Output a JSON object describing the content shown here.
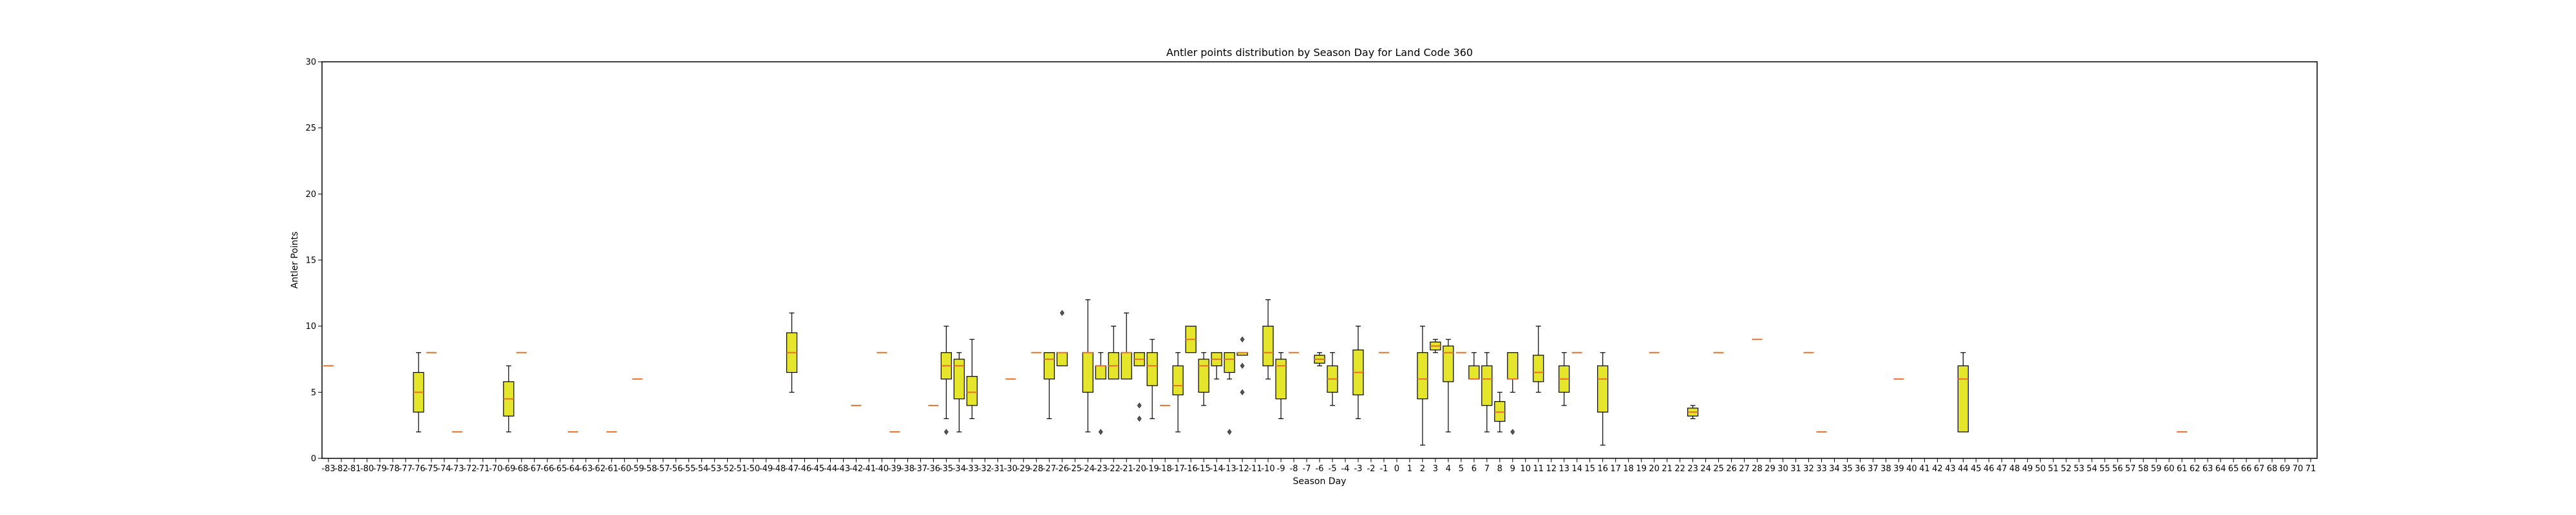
{
  "chart_data": {
    "type": "box",
    "title": "Antler points distribution by Season Day for Land Code 360",
    "xlabel": "Season Day",
    "ylabel": "Antler Points",
    "ylim": [
      0,
      30
    ],
    "yticks": [
      0,
      5,
      10,
      15,
      20,
      25,
      30
    ],
    "x_range": [
      -83,
      71
    ],
    "grid": false,
    "colors": {
      "box": "#e5e52b",
      "median": "#e8702a",
      "edge": "#000000"
    },
    "boxes": [
      {
        "day": -83,
        "q1": 7,
        "median": 7,
        "q3": 7,
        "low": 7,
        "high": 7
      },
      {
        "day": -76,
        "q1": 3.5,
        "median": 5,
        "q3": 6.5,
        "low": 2,
        "high": 8
      },
      {
        "day": -75,
        "q1": 8,
        "median": 8,
        "q3": 8,
        "low": 8,
        "high": 8
      },
      {
        "day": -73,
        "q1": 2,
        "median": 2,
        "q3": 2,
        "low": 2,
        "high": 2
      },
      {
        "day": -69,
        "q1": 3.2,
        "median": 4.5,
        "q3": 5.8,
        "low": 2,
        "high": 7
      },
      {
        "day": -68,
        "q1": 8,
        "median": 8,
        "q3": 8,
        "low": 8,
        "high": 8
      },
      {
        "day": -64,
        "q1": 2,
        "median": 2,
        "q3": 2,
        "low": 2,
        "high": 2
      },
      {
        "day": -61,
        "q1": 2,
        "median": 2,
        "q3": 2,
        "low": 2,
        "high": 2
      },
      {
        "day": -59,
        "q1": 6,
        "median": 6,
        "q3": 6,
        "low": 6,
        "high": 6
      },
      {
        "day": -47,
        "q1": 6.5,
        "median": 8,
        "q3": 9.5,
        "low": 5,
        "high": 11
      },
      {
        "day": -42,
        "q1": 4,
        "median": 4,
        "q3": 4,
        "low": 4,
        "high": 4
      },
      {
        "day": -40,
        "q1": 8,
        "median": 8,
        "q3": 8,
        "low": 8,
        "high": 8
      },
      {
        "day": -39,
        "q1": 2,
        "median": 2,
        "q3": 2,
        "low": 2,
        "high": 2
      },
      {
        "day": -36,
        "q1": 4,
        "median": 4,
        "q3": 4,
        "low": 4,
        "high": 4
      },
      {
        "day": -35,
        "q1": 6,
        "median": 7,
        "q3": 8,
        "low": 3,
        "high": 10,
        "outliers": [
          2
        ]
      },
      {
        "day": -34,
        "q1": 4.5,
        "median": 7,
        "q3": 7.5,
        "low": 2,
        "high": 8
      },
      {
        "day": -33,
        "q1": 4,
        "median": 5,
        "q3": 6.2,
        "low": 3,
        "high": 9
      },
      {
        "day": -30,
        "q1": 6,
        "median": 6,
        "q3": 6,
        "low": 6,
        "high": 6
      },
      {
        "day": -28,
        "q1": 8,
        "median": 8,
        "q3": 8,
        "low": 8,
        "high": 8
      },
      {
        "day": -27,
        "q1": 6,
        "median": 7.5,
        "q3": 8,
        "low": 3,
        "high": 8
      },
      {
        "day": -26,
        "q1": 7,
        "median": 8,
        "q3": 8,
        "low": 7,
        "high": 8,
        "outliers": [
          11
        ]
      },
      {
        "day": -24,
        "q1": 5,
        "median": 8,
        "q3": 8,
        "low": 2,
        "high": 12
      },
      {
        "day": -23,
        "q1": 6,
        "median": 7,
        "q3": 7,
        "low": 6,
        "high": 8,
        "outliers": [
          2
        ]
      },
      {
        "day": -22,
        "q1": 6,
        "median": 7,
        "q3": 8,
        "low": 6,
        "high": 10
      },
      {
        "day": -21,
        "q1": 6,
        "median": 8,
        "q3": 8,
        "low": 6,
        "high": 11
      },
      {
        "day": -20,
        "q1": 7,
        "median": 7.5,
        "q3": 8,
        "low": 7,
        "high": 8,
        "outliers": [
          4,
          3
        ]
      },
      {
        "day": -19,
        "q1": 5.5,
        "median": 7,
        "q3": 8,
        "low": 3,
        "high": 9
      },
      {
        "day": -18,
        "q1": 4,
        "median": 4,
        "q3": 4,
        "low": 4,
        "high": 4
      },
      {
        "day": -17,
        "q1": 4.8,
        "median": 5.5,
        "q3": 7,
        "low": 2,
        "high": 8
      },
      {
        "day": -16,
        "q1": 8,
        "median": 9,
        "q3": 10,
        "low": 8,
        "high": 10
      },
      {
        "day": -15,
        "q1": 5,
        "median": 7,
        "q3": 7.5,
        "low": 4,
        "high": 8
      },
      {
        "day": -14,
        "q1": 7,
        "median": 7.5,
        "q3": 8,
        "low": 6,
        "high": 8
      },
      {
        "day": -13,
        "q1": 6.5,
        "median": 7.5,
        "q3": 8,
        "low": 6,
        "high": 8,
        "outliers": [
          2
        ]
      },
      {
        "day": -12,
        "q1": 7.8,
        "median": 8,
        "q3": 8,
        "low": 7.8,
        "high": 8,
        "outliers": [
          9,
          7,
          5
        ]
      },
      {
        "day": -10,
        "q1": 7,
        "median": 8,
        "q3": 10,
        "low": 6,
        "high": 12
      },
      {
        "day": -9,
        "q1": 4.5,
        "median": 7,
        "q3": 7.5,
        "low": 3,
        "high": 8
      },
      {
        "day": -8,
        "q1": 8,
        "median": 8,
        "q3": 8,
        "low": 8,
        "high": 8
      },
      {
        "day": -6,
        "q1": 7.2,
        "median": 7.5,
        "q3": 7.8,
        "low": 7,
        "high": 8
      },
      {
        "day": -5,
        "q1": 5,
        "median": 6,
        "q3": 7,
        "low": 4,
        "high": 8
      },
      {
        "day": -3,
        "q1": 4.8,
        "median": 6.5,
        "q3": 8.2,
        "low": 3,
        "high": 10
      },
      {
        "day": -1,
        "q1": 8,
        "median": 8,
        "q3": 8,
        "low": 8,
        "high": 8
      },
      {
        "day": 2,
        "q1": 4.5,
        "median": 6,
        "q3": 8,
        "low": 1,
        "high": 10
      },
      {
        "day": 3,
        "q1": 8.2,
        "median": 8.5,
        "q3": 8.8,
        "low": 8,
        "high": 9
      },
      {
        "day": 4,
        "q1": 5.8,
        "median": 8,
        "q3": 8.5,
        "low": 2,
        "high": 9
      },
      {
        "day": 5,
        "q1": 8,
        "median": 8,
        "q3": 8,
        "low": 8,
        "high": 8
      },
      {
        "day": 6,
        "q1": 6,
        "median": 6,
        "q3": 7,
        "low": 6,
        "high": 8
      },
      {
        "day": 7,
        "q1": 4,
        "median": 6,
        "q3": 7,
        "low": 2,
        "high": 8
      },
      {
        "day": 8,
        "q1": 2.8,
        "median": 3.5,
        "q3": 4.3,
        "low": 2,
        "high": 5
      },
      {
        "day": 9,
        "q1": 6,
        "median": 6,
        "q3": 8,
        "low": 5,
        "high": 8,
        "outliers": [
          2
        ]
      },
      {
        "day": 11,
        "q1": 5.8,
        "median": 6.5,
        "q3": 7.8,
        "low": 5,
        "high": 10
      },
      {
        "day": 13,
        "q1": 5,
        "median": 6,
        "q3": 7,
        "low": 4,
        "high": 8
      },
      {
        "day": 14,
        "q1": 8,
        "median": 8,
        "q3": 8,
        "low": 8,
        "high": 8
      },
      {
        "day": 16,
        "q1": 3.5,
        "median": 6,
        "q3": 7,
        "low": 1,
        "high": 8
      },
      {
        "day": 20,
        "q1": 8,
        "median": 8,
        "q3": 8,
        "low": 8,
        "high": 8
      },
      {
        "day": 23,
        "q1": 3.2,
        "median": 3.5,
        "q3": 3.8,
        "low": 3,
        "high": 4
      },
      {
        "day": 25,
        "q1": 8,
        "median": 8,
        "q3": 8,
        "low": 8,
        "high": 8
      },
      {
        "day": 28,
        "q1": 9,
        "median": 9,
        "q3": 9,
        "low": 9,
        "high": 9
      },
      {
        "day": 32,
        "q1": 8,
        "median": 8,
        "q3": 8,
        "low": 8,
        "high": 8
      },
      {
        "day": 33,
        "q1": 2,
        "median": 2,
        "q3": 2,
        "low": 2,
        "high": 2
      },
      {
        "day": 39,
        "q1": 6,
        "median": 6,
        "q3": 6,
        "low": 6,
        "high": 6
      },
      {
        "day": 44,
        "q1": 2,
        "median": 6,
        "q3": 7,
        "low": 2,
        "high": 8
      },
      {
        "day": 61,
        "q1": 2,
        "median": 2,
        "q3": 2,
        "low": 2,
        "high": 2
      }
    ]
  }
}
